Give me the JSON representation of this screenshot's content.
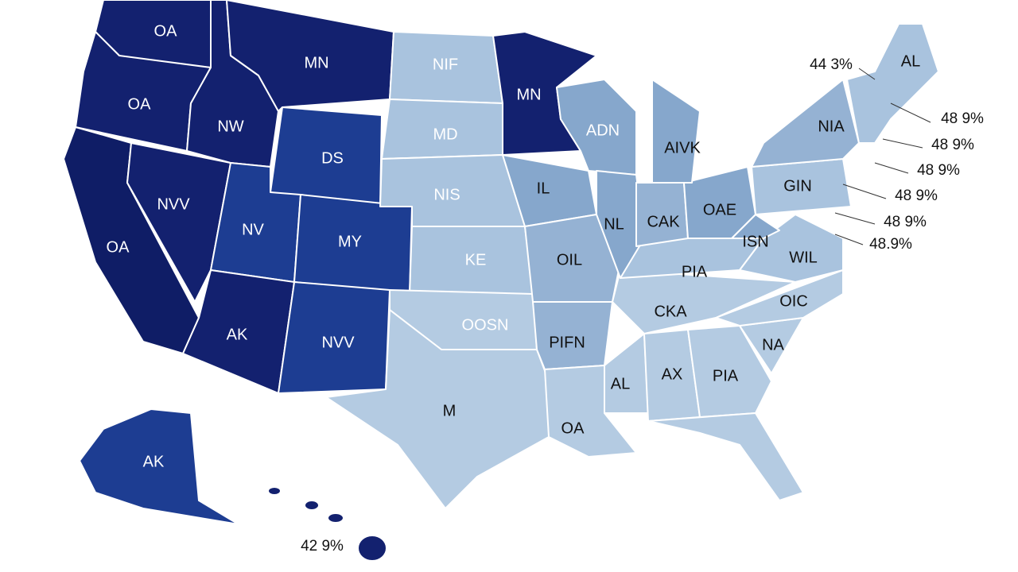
{
  "regions": [
    {
      "label": "OA"
    },
    {
      "label": "MN"
    },
    {
      "label": "OA"
    },
    {
      "label": "NW"
    },
    {
      "label": "OA"
    },
    {
      "label": "NVV"
    },
    {
      "label": "NV"
    },
    {
      "label": "DS"
    },
    {
      "label": "MY"
    },
    {
      "label": "AK"
    },
    {
      "label": "NVV"
    },
    {
      "label": "NIF"
    },
    {
      "label": "MD"
    },
    {
      "label": "NIS"
    },
    {
      "label": "KE"
    },
    {
      "label": "OOSN"
    },
    {
      "label": "M"
    },
    {
      "label": "MN"
    },
    {
      "label": "ADN"
    },
    {
      "label": "IL"
    },
    {
      "label": "OIL"
    },
    {
      "label": "NL"
    },
    {
      "label": "AIVK"
    },
    {
      "label": "CAK"
    },
    {
      "label": "OAE"
    },
    {
      "label": "ISN"
    },
    {
      "label": "WIL"
    },
    {
      "label": "PIA"
    },
    {
      "label": "CKA"
    },
    {
      "label": "OIC"
    },
    {
      "label": "NA"
    },
    {
      "label": "PIA"
    },
    {
      "label": "AX"
    },
    {
      "label": "AL"
    },
    {
      "label": "PIFN"
    },
    {
      "label": "OA"
    },
    {
      "label": "NIA"
    },
    {
      "label": "GIN"
    },
    {
      "label": "AL"
    },
    {
      "label": "AK"
    }
  ],
  "callouts": [
    {
      "label": "44 3%"
    },
    {
      "label": "48 9%"
    },
    {
      "label": "48 9%"
    },
    {
      "label": "48 9%"
    },
    {
      "label": "48 9%"
    },
    {
      "label": "48 9%"
    },
    {
      "label": "48.9%"
    },
    {
      "label": "42 9%"
    }
  ]
}
